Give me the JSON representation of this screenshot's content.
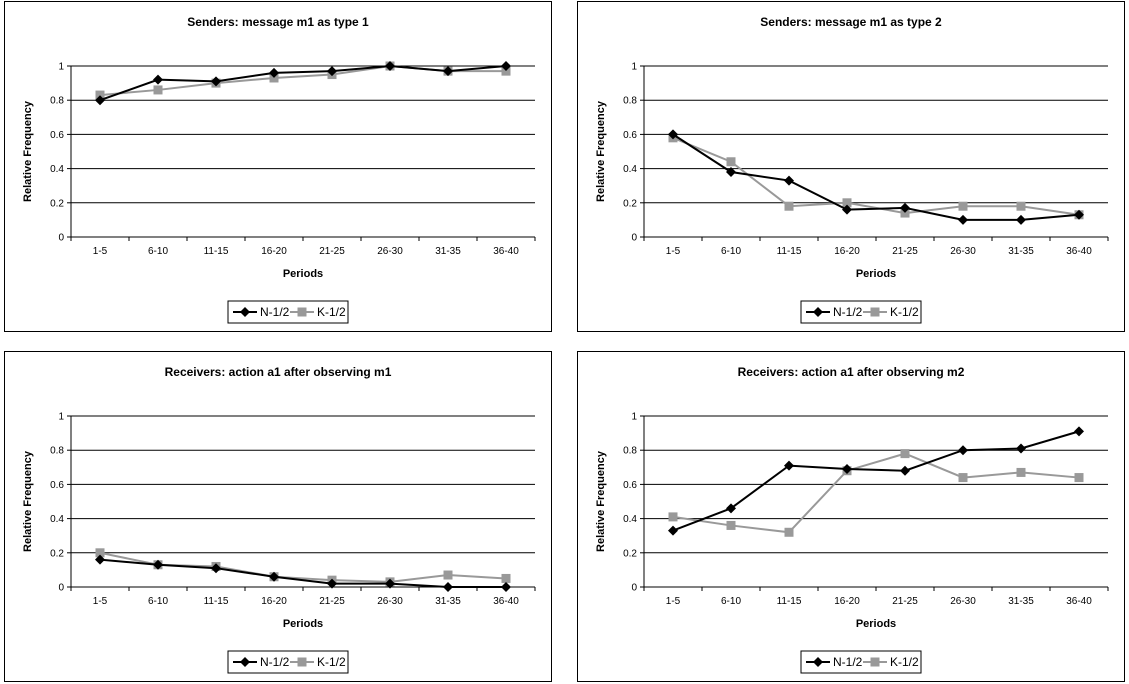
{
  "colors": {
    "n_series": "#000000",
    "k_series": "#999999",
    "grid": "#000000"
  },
  "chart_data": [
    {
      "type": "line",
      "title": "Senders: message m1 as type 1",
      "xlabel": "Periods",
      "ylabel": "Relative Frequency",
      "categories": [
        "1-5",
        "6-10",
        "11-15",
        "16-20",
        "21-25",
        "26-30",
        "31-35",
        "36-40"
      ],
      "ylim": [
        0,
        1
      ],
      "yticks": [
        "0",
        "0.2",
        "0.4",
        "0.6",
        "0.8",
        "1"
      ],
      "grid": true,
      "legend_position": "bottom",
      "series": [
        {
          "name": "N-1/2",
          "marker": "diamond",
          "values": [
            0.8,
            0.92,
            0.91,
            0.96,
            0.97,
            1.0,
            0.97,
            1.0
          ]
        },
        {
          "name": "K-1/2",
          "marker": "square",
          "values": [
            0.83,
            0.86,
            0.9,
            0.93,
            0.95,
            1.0,
            0.97,
            0.97
          ]
        }
      ]
    },
    {
      "type": "line",
      "title": "Senders: message m1 as type 2",
      "xlabel": "Periods",
      "ylabel": "Relative Frequency",
      "categories": [
        "1-5",
        "6-10",
        "11-15",
        "16-20",
        "21-25",
        "26-30",
        "31-35",
        "36-40"
      ],
      "ylim": [
        0,
        1
      ],
      "yticks": [
        "0",
        "0.2",
        "0.4",
        "0.6",
        "0.8",
        "1"
      ],
      "grid": true,
      "legend_position": "bottom",
      "series": [
        {
          "name": "N-1/2",
          "marker": "diamond",
          "values": [
            0.6,
            0.38,
            0.33,
            0.16,
            0.17,
            0.1,
            0.1,
            0.13
          ]
        },
        {
          "name": "K-1/2",
          "marker": "square",
          "values": [
            0.58,
            0.44,
            0.18,
            0.2,
            0.14,
            0.18,
            0.18,
            0.13
          ]
        }
      ]
    },
    {
      "type": "line",
      "title": "Receivers: action a1 after observing m1",
      "xlabel": "Periods",
      "ylabel": "Relative Frequency",
      "categories": [
        "1-5",
        "6-10",
        "11-15",
        "16-20",
        "21-25",
        "26-30",
        "31-35",
        "36-40"
      ],
      "ylim": [
        0,
        1
      ],
      "yticks": [
        "0",
        "0.2",
        "0.4",
        "0.6",
        "0.8",
        "1"
      ],
      "grid": true,
      "legend_position": "bottom",
      "series": [
        {
          "name": "N-1/2",
          "marker": "diamond",
          "values": [
            0.16,
            0.13,
            0.11,
            0.06,
            0.02,
            0.02,
            0.0,
            0.0
          ]
        },
        {
          "name": "K-1/2",
          "marker": "square",
          "values": [
            0.2,
            0.13,
            0.12,
            0.06,
            0.04,
            0.03,
            0.07,
            0.05
          ]
        }
      ]
    },
    {
      "type": "line",
      "title": "Receivers: action a1 after observing m2",
      "xlabel": "Periods",
      "ylabel": "Relative Frequency",
      "categories": [
        "1-5",
        "6-10",
        "11-15",
        "16-20",
        "21-25",
        "26-30",
        "31-35",
        "36-40"
      ],
      "ylim": [
        0,
        1
      ],
      "yticks": [
        "0",
        "0.2",
        "0.4",
        "0.6",
        "0.8",
        "1"
      ],
      "grid": true,
      "legend_position": "bottom",
      "series": [
        {
          "name": "N-1/2",
          "marker": "diamond",
          "values": [
            0.33,
            0.46,
            0.71,
            0.69,
            0.68,
            0.8,
            0.81,
            0.91
          ]
        },
        {
          "name": "K-1/2",
          "marker": "square",
          "values": [
            0.41,
            0.36,
            0.32,
            0.68,
            0.78,
            0.64,
            0.67,
            0.64
          ]
        }
      ]
    }
  ]
}
